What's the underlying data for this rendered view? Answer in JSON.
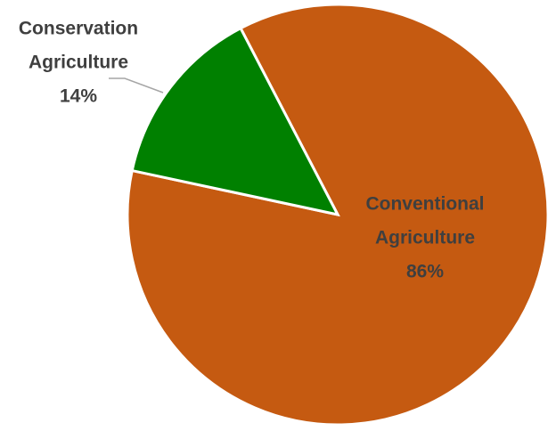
{
  "chart_data": {
    "type": "pie",
    "slices": [
      {
        "name_lines": [
          "Conventional",
          "Agriculture"
        ],
        "value": 86,
        "label": "86%",
        "color": "#c55a11"
      },
      {
        "name_lines": [
          "Conservation",
          "Agriculture"
        ],
        "value": 14,
        "label": "14%",
        "color": "#008000"
      }
    ],
    "label_color": "#3f3f3f"
  }
}
